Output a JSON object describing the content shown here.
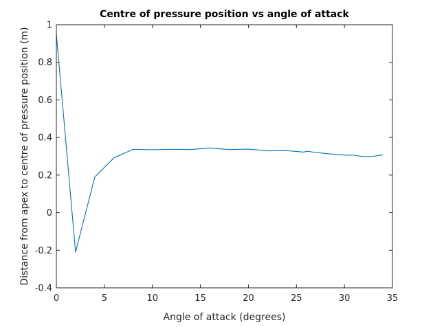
{
  "chart_data": {
    "type": "line",
    "title": "Centre of pressure position vs angle of attack",
    "xlabel": "Angle of attack (degrees)",
    "ylabel": "Distance from apex to centre of pressure position (m)",
    "xlim": [
      0,
      35
    ],
    "ylim": [
      -0.4,
      1
    ],
    "xticks": [
      0,
      5,
      10,
      15,
      20,
      25,
      30,
      35
    ],
    "xtick_labels": [
      "0",
      "5",
      "10",
      "15",
      "20",
      "25",
      "30",
      "35"
    ],
    "yticks": [
      -0.4,
      -0.2,
      0,
      0.2,
      0.4,
      0.6,
      0.8,
      1
    ],
    "ytick_labels": [
      "-0.4",
      "-0.2",
      "0",
      "0.2",
      "0.4",
      "0.6",
      "0.8",
      "1"
    ],
    "grid": false,
    "series": [
      {
        "color": "#0072bd",
        "x": [
          0,
          2,
          4,
          6,
          8,
          10,
          12,
          14,
          16,
          18,
          20,
          22,
          24,
          25.8,
          26,
          28,
          30,
          31,
          32,
          33,
          34
        ],
        "y": [
          0.95,
          -0.21,
          0.19,
          0.292,
          0.337,
          0.335,
          0.337,
          0.336,
          0.344,
          0.336,
          0.338,
          0.329,
          0.33,
          0.322,
          0.327,
          0.315,
          0.306,
          0.306,
          0.298,
          0.3,
          0.307
        ]
      }
    ]
  }
}
